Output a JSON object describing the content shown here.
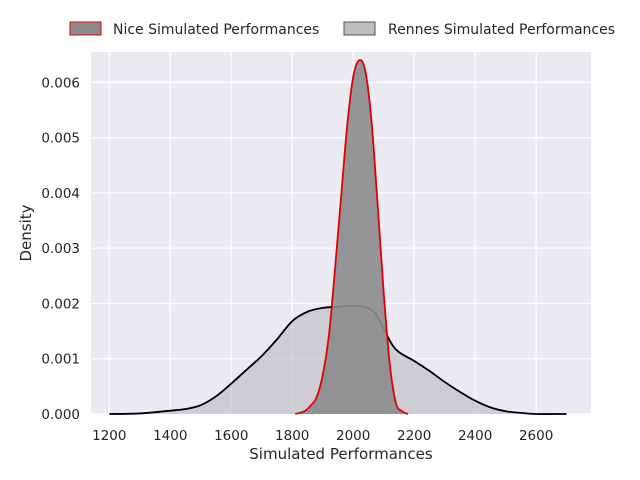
{
  "chart_data": {
    "type": "area",
    "title": "",
    "xlabel": "Simulated Performances",
    "ylabel": "Density",
    "xlim": [
      1140,
      2780
    ],
    "ylim": [
      0,
      0.00655
    ],
    "xticks": [
      1200,
      1400,
      1600,
      1800,
      2000,
      2200,
      2400,
      2600
    ],
    "xtick_labels": [
      "1200",
      "1400",
      "1600",
      "1800",
      "2000",
      "2200",
      "2400",
      "2600"
    ],
    "yticks": [
      0,
      0.001,
      0.002,
      0.003,
      0.004,
      0.005,
      0.006
    ],
    "ytick_labels": [
      "0.000",
      "0.001",
      "0.002",
      "0.003",
      "0.004",
      "0.005",
      "0.006"
    ],
    "grid": true,
    "legend_position": "top",
    "series": [
      {
        "name": "Nice Simulated Performances",
        "fill_color": "#8c8c8e",
        "line_color": "#e00000",
        "points": [
          [
            1810,
            0.0
          ],
          [
            1840,
            5e-05
          ],
          [
            1860,
            0.00015
          ],
          [
            1880,
            0.0003
          ],
          [
            1900,
            0.0007
          ],
          [
            1920,
            0.0014
          ],
          [
            1940,
            0.0026
          ],
          [
            1960,
            0.0039
          ],
          [
            1980,
            0.0052
          ],
          [
            2000,
            0.0061
          ],
          [
            2020,
            0.0064
          ],
          [
            2040,
            0.0062
          ],
          [
            2060,
            0.0053
          ],
          [
            2080,
            0.0038
          ],
          [
            2100,
            0.0022
          ],
          [
            2120,
            0.0009
          ],
          [
            2140,
            0.0002
          ],
          [
            2160,
            5e-05
          ],
          [
            2180,
            0.0
          ]
        ]
      },
      {
        "name": "Rennes Simulated Performances",
        "fill_color": "#bdbdc2",
        "line_color": "#000000",
        "points": [
          [
            1200,
            0.0
          ],
          [
            1300,
            1e-05
          ],
          [
            1400,
            6e-05
          ],
          [
            1450,
            9e-05
          ],
          [
            1500,
            0.00016
          ],
          [
            1550,
            0.00032
          ],
          [
            1600,
            0.00055
          ],
          [
            1650,
            0.0008
          ],
          [
            1700,
            0.00105
          ],
          [
            1750,
            0.00135
          ],
          [
            1800,
            0.00168
          ],
          [
            1850,
            0.00185
          ],
          [
            1900,
            0.00192
          ],
          [
            1950,
            0.00194
          ],
          [
            2000,
            0.00196
          ],
          [
            2050,
            0.00192
          ],
          [
            2075,
            0.0018
          ],
          [
            2100,
            0.00155
          ],
          [
            2125,
            0.00128
          ],
          [
            2150,
            0.00112
          ],
          [
            2200,
            0.00096
          ],
          [
            2250,
            0.00078
          ],
          [
            2300,
            0.00058
          ],
          [
            2350,
            0.0004
          ],
          [
            2400,
            0.00024
          ],
          [
            2450,
            0.00012
          ],
          [
            2500,
            5e-05
          ],
          [
            2550,
            2e-05
          ],
          [
            2600,
            0.0
          ],
          [
            2700,
            0.0
          ]
        ]
      }
    ]
  }
}
